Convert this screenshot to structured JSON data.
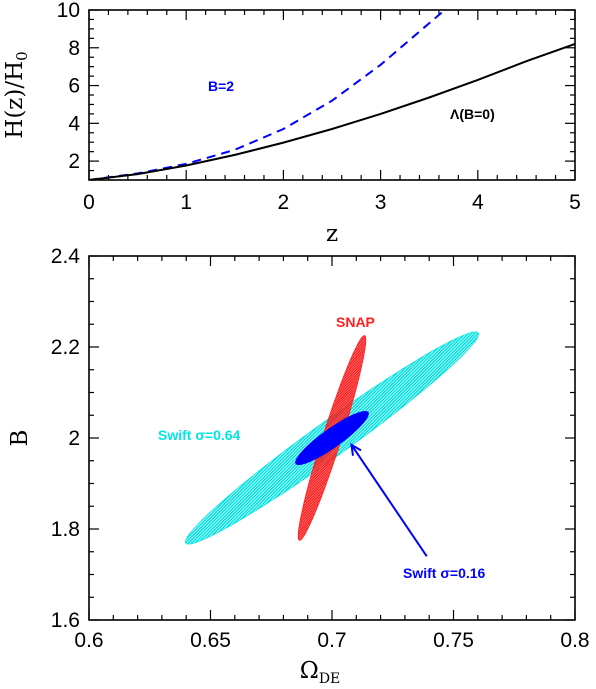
{
  "chart_data": [
    {
      "type": "line",
      "title": "",
      "xlabel": "z",
      "ylabel": "H(z)/H",
      "ylabel_sub": "0",
      "xlim": [
        0,
        5
      ],
      "ylim": [
        1,
        10
      ],
      "xticks": [
        "0",
        "1",
        "2",
        "3",
        "4",
        "5"
      ],
      "yticks": [
        "2",
        "4",
        "6",
        "8",
        "10"
      ],
      "grid": false,
      "series": [
        {
          "name": "B=2",
          "style": "dashed",
          "color": "#0000ff",
          "x": [
            0,
            0.5,
            1,
            1.5,
            2,
            2.5,
            3,
            3.5,
            3.66
          ],
          "y": [
            1,
            1.35,
            1.85,
            2.6,
            3.7,
            5.2,
            7.1,
            9.3,
            10
          ]
        },
        {
          "name": "Λ(B=0)",
          "style": "solid",
          "color": "#000000",
          "x": [
            0,
            0.5,
            1,
            1.5,
            2,
            2.5,
            3,
            3.5,
            4,
            4.5,
            5
          ],
          "y": [
            1,
            1.31,
            1.77,
            2.33,
            2.98,
            3.7,
            4.5,
            5.37,
            6.3,
            7.29,
            8.2
          ]
        }
      ]
    },
    {
      "type": "scatter",
      "title": "",
      "xlabel": "Ω",
      "xlabel_sub": "DE",
      "ylabel": "B",
      "xlim": [
        0.6,
        0.8
      ],
      "ylim": [
        1.6,
        2.4
      ],
      "xticks": [
        "0.6",
        "0.65",
        "0.7",
        "0.75",
        "0.8"
      ],
      "yticks": [
        "1.6",
        "1.8",
        "2",
        "2.2",
        "2.4"
      ],
      "grid": false,
      "regions": [
        {
          "name": "Swift σ=0.64",
          "color": "#00e5e5",
          "fill": "hatched",
          "center": [
            0.7,
            2.0
          ],
          "a": [
            0.06,
            0.232
          ],
          "b": [
            0.0062,
            -0.024
          ]
        },
        {
          "name": "SNAP",
          "color": "#ff2020",
          "fill": "hatched",
          "center": [
            0.7,
            2.0
          ],
          "a": [
            0.0135,
            0.225
          ],
          "b": [
            0.0034,
            -0.0105
          ]
        },
        {
          "name": "Swift σ=0.16",
          "color": "#0000ff",
          "fill": "solid",
          "center": [
            0.7,
            2.0
          ],
          "a": [
            0.015,
            0.057
          ],
          "b": [
            0.0032,
            -0.0125
          ]
        }
      ],
      "annotations": [
        {
          "text": "SNAP",
          "color": "#ff2020"
        },
        {
          "text": "Swift σ=0.64",
          "color": "#00e5e5"
        },
        {
          "text": "Swift σ=0.16",
          "color": "#0000ff",
          "arrow_to": [
            0.708,
            1.985
          ],
          "arrow_from": [
            0.739,
            1.74
          ]
        }
      ]
    }
  ]
}
